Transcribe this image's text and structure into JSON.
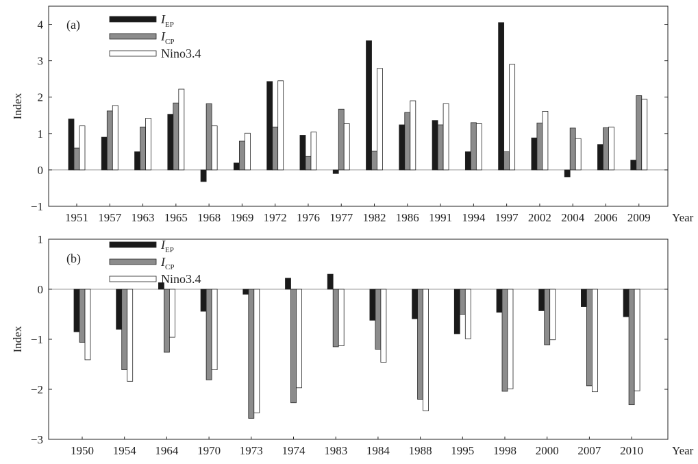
{
  "chart_data": [
    {
      "type": "bar",
      "panel_label": "(a)",
      "ylabel": "Index",
      "xlabel": "Year",
      "ylim": [
        -1,
        4.5
      ],
      "yticks": [
        "−1",
        "0",
        "1",
        "2",
        "3",
        "4"
      ],
      "categories": [
        "1951",
        "1957",
        "1963",
        "1965",
        "1968",
        "1969",
        "1972",
        "1976",
        "1977",
        "1982",
        "1986",
        "1991",
        "1994",
        "1997",
        "2002",
        "2004",
        "2006",
        "2009"
      ],
      "legend_position": "top-left",
      "series": [
        {
          "name": "I",
          "subscript": "EP",
          "color": "#1a1a1a",
          "values": [
            1.4,
            0.9,
            0.5,
            1.53,
            -0.32,
            0.19,
            2.43,
            0.95,
            -0.1,
            3.55,
            1.24,
            1.36,
            0.5,
            4.05,
            0.88,
            -0.19,
            0.7,
            0.27
          ]
        },
        {
          "name": "I",
          "subscript": "CP",
          "color": "#8c8c8c",
          "values": [
            0.6,
            1.62,
            1.18,
            1.84,
            1.82,
            0.79,
            1.18,
            0.37,
            1.67,
            0.52,
            1.58,
            1.24,
            1.3,
            0.5,
            1.29,
            1.15,
            1.16,
            2.04
          ]
        },
        {
          "name": "Nino3.4",
          "color": "#ffffff",
          "values": [
            1.21,
            1.77,
            1.42,
            2.22,
            1.21,
            1.01,
            2.45,
            1.04,
            1.27,
            2.79,
            1.9,
            1.82,
            1.27,
            2.9,
            1.61,
            0.86,
            1.18,
            1.94
          ]
        }
      ]
    },
    {
      "type": "bar",
      "panel_label": "(b)",
      "ylabel": "Index",
      "xlabel": "Year",
      "ylim": [
        -3,
        1
      ],
      "yticks": [
        "−3",
        "−2",
        "−1",
        "0",
        "1"
      ],
      "categories": [
        "1950",
        "1954",
        "1964",
        "1970",
        "1973",
        "1974",
        "1983",
        "1984",
        "1988",
        "1995",
        "1998",
        "2000",
        "2007",
        "2010"
      ],
      "legend_position": "top-left",
      "series": [
        {
          "name": "I",
          "subscript": "EP",
          "color": "#1a1a1a",
          "values": [
            -0.85,
            -0.8,
            0.13,
            -0.44,
            -0.1,
            0.22,
            0.3,
            -0.62,
            -0.59,
            -0.89,
            -0.46,
            -0.43,
            -0.35,
            -0.55
          ]
        },
        {
          "name": "I",
          "subscript": "CP",
          "color": "#8c8c8c",
          "values": [
            -1.06,
            -1.61,
            -1.26,
            -1.81,
            -2.58,
            -2.27,
            -1.15,
            -1.2,
            -2.2,
            -0.5,
            -2.04,
            -1.11,
            -1.93,
            -2.31
          ]
        },
        {
          "name": "Nino3.4",
          "color": "#ffffff",
          "values": [
            -1.41,
            -1.84,
            -0.96,
            -1.61,
            -2.47,
            -1.97,
            -1.13,
            -1.46,
            -2.43,
            -0.99,
            -1.99,
            -1.01,
            -2.05,
            -2.03
          ]
        }
      ]
    }
  ]
}
